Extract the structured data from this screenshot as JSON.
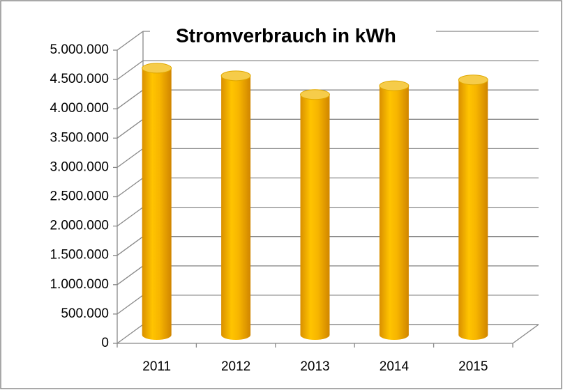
{
  "chart_data": {
    "type": "bar",
    "title": "Stromverbrauch in kWh",
    "categories": [
      "2011",
      "2012",
      "2013",
      "2014",
      "2015"
    ],
    "values": [
      4550000,
      4420000,
      4100000,
      4250000,
      4350000
    ],
    "color": "#f2b400",
    "ylim": [
      0,
      5000000
    ],
    "yticks": [
      0,
      {
        "value": 500000,
        "label": "500.000"
      },
      {
        "value": 1000000,
        "label": "1.000.000"
      },
      {
        "value": 1500000,
        "label": "1.500.000"
      },
      {
        "value": 2000000,
        "label": "2.000.000"
      },
      {
        "value": 2500000,
        "label": "2.500.000"
      },
      {
        "value": 3000000,
        "label": "3.000.000"
      },
      {
        "value": 3500000,
        "label": "3.500.000"
      },
      {
        "value": 4000000,
        "label": "4.000.000"
      },
      {
        "value": 4500000,
        "label": "4.500.000"
      },
      {
        "value": 5000000,
        "label": "5.000.000"
      }
    ],
    "grid": true
  }
}
